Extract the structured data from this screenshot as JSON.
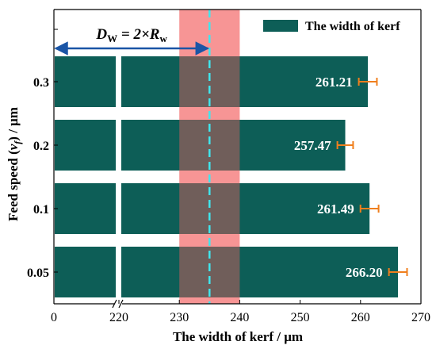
{
  "chart_data": {
    "type": "bar",
    "orientation": "horizontal",
    "categories": [
      "0.3",
      "0.2",
      "0.1",
      "0.05"
    ],
    "series": [
      {
        "name": "The width of kerf",
        "values": [
          261.21,
          257.47,
          261.49,
          266.2
        ],
        "value_labels": [
          "261.21",
          "257.47",
          "261.49",
          "266.20"
        ],
        "error": [
          1.5,
          1.3,
          1.5,
          1.5
        ],
        "color": "#0d5e57",
        "error_color": "#f07f1d"
      }
    ],
    "xlabel": "The width of kerf / μm",
    "ylabel_parts": [
      "Feed speed (",
      "v",
      "f",
      ") / μm"
    ],
    "x_axis": {
      "broken": true,
      "break_from": 0,
      "break_to": 220,
      "xlim": [
        218,
        270
      ],
      "ticks": [
        {
          "value": 0,
          "label": "0"
        },
        {
          "value": 220,
          "label": "220"
        },
        {
          "value": 230,
          "label": "230"
        },
        {
          "value": 240,
          "label": "240"
        },
        {
          "value": 250,
          "label": "250"
        },
        {
          "value": 260,
          "label": "260"
        },
        {
          "value": 270,
          "label": "270"
        }
      ]
    },
    "shaded_band": {
      "from": 230,
      "to": 240,
      "color": "#f79595"
    },
    "reference_line": {
      "value": 235,
      "color": "#3fe6ee"
    },
    "annotation": {
      "parts": [
        "D",
        "W",
        " = 2×",
        "R",
        "w"
      ],
      "arrow_from": 0,
      "arrow_to": 235,
      "color": "#1a55a6"
    },
    "legend": {
      "position": "top-right",
      "label": "The width of kerf"
    },
    "grid": false
  }
}
